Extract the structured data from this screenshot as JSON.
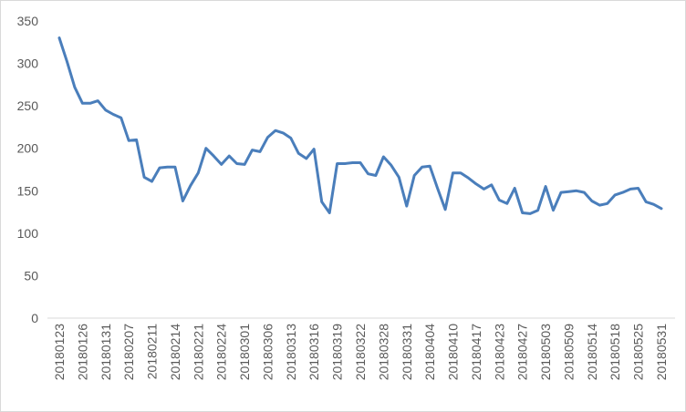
{
  "chart_data": {
    "type": "line",
    "categories": [
      "20180123",
      null,
      null,
      "20180126",
      null,
      null,
      "20180131",
      null,
      null,
      "20180207",
      null,
      null,
      "20180211",
      null,
      null,
      "20180214",
      null,
      null,
      "20180221",
      null,
      null,
      "20180224",
      null,
      null,
      "20180301",
      null,
      null,
      "20180306",
      null,
      null,
      "20180313",
      null,
      null,
      "20180316",
      null,
      null,
      "20180319",
      null,
      null,
      "20180322",
      null,
      null,
      "20180328",
      null,
      null,
      "20180331",
      null,
      null,
      "20180404",
      null,
      null,
      "20180410",
      null,
      null,
      "20180417",
      null,
      null,
      "20180423",
      null,
      null,
      "20180427",
      null,
      null,
      "20180503",
      null,
      null,
      "20180509",
      null,
      null,
      "20180514",
      null,
      null,
      "20180518",
      null,
      null,
      "20180525",
      null,
      null,
      "20180531"
    ],
    "series": [
      {
        "color": "#4a7ebb",
        "values": [
          330,
          302,
          272,
          253,
          253,
          256,
          245,
          240,
          236,
          209,
          210,
          166,
          161,
          177,
          178,
          178,
          138,
          156,
          171,
          200,
          191,
          181,
          191,
          182,
          181,
          198,
          196,
          213,
          221,
          218,
          212,
          194,
          188,
          199,
          137,
          124,
          182,
          182,
          183,
          183,
          170,
          168,
          190,
          180,
          166,
          132,
          168,
          178,
          179,
          153,
          128,
          171,
          171,
          165,
          158,
          152,
          157,
          139,
          135,
          153,
          124,
          123,
          127,
          155,
          127,
          148,
          149,
          150,
          148,
          138,
          133,
          135,
          145,
          148,
          152,
          153,
          137,
          134,
          129
        ]
      }
    ],
    "ylim": [
      0,
      350
    ],
    "yticks": [
      0,
      50,
      100,
      150,
      200,
      250,
      300,
      350
    ],
    "grid": false
  }
}
